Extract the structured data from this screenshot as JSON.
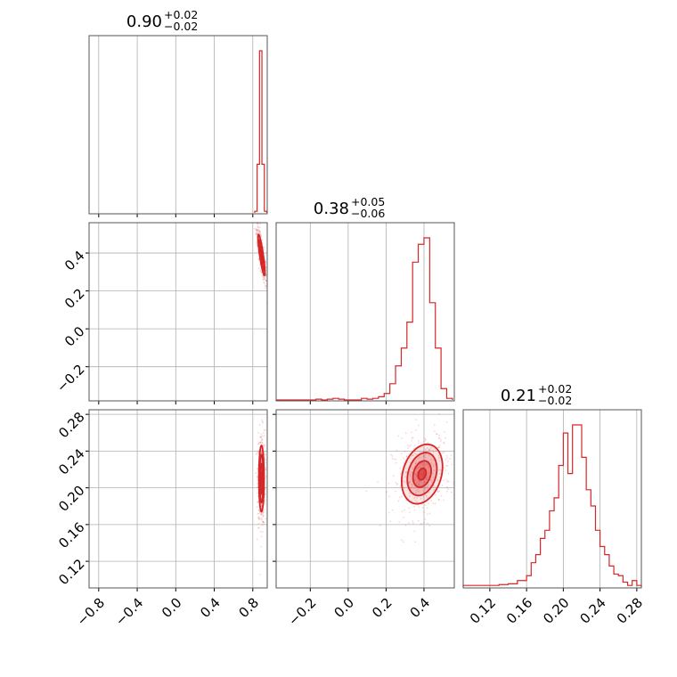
{
  "chart_data": {
    "type": "corner",
    "color": "#d62728",
    "parameters": [
      {
        "title_value": "0.90",
        "title_plus": "+0.02",
        "title_minus": "−0.02",
        "range": [
          -0.9,
          0.95
        ],
        "ticks": [
          -0.8,
          -0.4,
          0.0,
          0.4,
          0.8
        ],
        "tick_labels": [
          "−0.8",
          "−0.4",
          "0.0",
          "0.4",
          "0.8"
        ]
      },
      {
        "title_value": "0.38",
        "title_plus": "+0.05",
        "title_minus": "−0.06",
        "range": [
          -0.38,
          0.56
        ],
        "ticks": [
          -0.2,
          0.0,
          0.2,
          0.4
        ],
        "tick_labels": [
          "−0.2",
          "0.0",
          "0.2",
          "0.4"
        ]
      },
      {
        "title_value": "0.21",
        "title_plus": "+0.02",
        "title_minus": "−0.02",
        "range": [
          0.091,
          0.285
        ],
        "ticks": [
          0.12,
          0.16,
          0.2,
          0.24,
          0.28
        ],
        "tick_labels": [
          "0.12",
          "0.16",
          "0.20",
          "0.24",
          "0.28"
        ]
      }
    ],
    "histograms": [
      {
        "bin_edges": [
          0.82,
          0.845,
          0.87,
          0.895,
          0.92,
          0.945
        ],
        "counts": [
          0.01,
          0.3,
          1.0,
          0.3,
          0.01
        ]
      },
      {
        "bin_edges": [
          -0.38,
          -0.35,
          -0.32,
          -0.29,
          -0.26,
          -0.23,
          -0.2,
          -0.17,
          -0.14,
          -0.11,
          -0.08,
          -0.05,
          -0.02,
          0.01,
          0.04,
          0.07,
          0.1,
          0.13,
          0.16,
          0.19,
          0.22,
          0.25,
          0.28,
          0.31,
          0.34,
          0.37,
          0.4,
          0.43,
          0.46,
          0.49,
          0.52,
          0.55
        ],
        "counts": [
          0,
          0,
          0,
          0,
          0,
          0,
          0,
          0.005,
          0,
          0.005,
          0.01,
          0.005,
          0,
          0,
          0,
          0.01,
          0.005,
          0.01,
          0.02,
          0.04,
          0.1,
          0.21,
          0.32,
          0.48,
          0.85,
          0.96,
          1.0,
          0.6,
          0.32,
          0.07,
          0.01
        ]
      },
      {
        "bin_edges": [
          0.091,
          0.1,
          0.11,
          0.12,
          0.13,
          0.14,
          0.15,
          0.16,
          0.165,
          0.17,
          0.175,
          0.18,
          0.185,
          0.19,
          0.195,
          0.2,
          0.205,
          0.21,
          0.215,
          0.22,
          0.225,
          0.23,
          0.235,
          0.24,
          0.245,
          0.25,
          0.255,
          0.26,
          0.265,
          0.27,
          0.275,
          0.28,
          0.285
        ],
        "counts": [
          0.01,
          0.01,
          0.01,
          0.01,
          0.015,
          0.02,
          0.04,
          0.07,
          0.15,
          0.2,
          0.3,
          0.35,
          0.47,
          0.55,
          0.75,
          0.95,
          0.7,
          1.0,
          1.0,
          0.8,
          0.6,
          0.5,
          0.35,
          0.25,
          0.2,
          0.13,
          0.08,
          0.07,
          0.03,
          0.01,
          0.04,
          0.01
        ]
      }
    ],
    "joint_2d": [
      {
        "x_param": 0,
        "y_param": 1,
        "center": [
          0.89,
          0.39
        ],
        "spread": [
          0.02,
          0.06
        ],
        "correlation": -0.85
      },
      {
        "x_param": 0,
        "y_param": 2,
        "center": [
          0.89,
          0.21
        ],
        "spread": [
          0.015,
          0.02
        ],
        "correlation": 0.0
      },
      {
        "x_param": 1,
        "y_param": 2,
        "center": [
          0.39,
          0.215
        ],
        "spread": [
          0.06,
          0.018
        ],
        "correlation": 0.25
      }
    ],
    "grid": true
  }
}
